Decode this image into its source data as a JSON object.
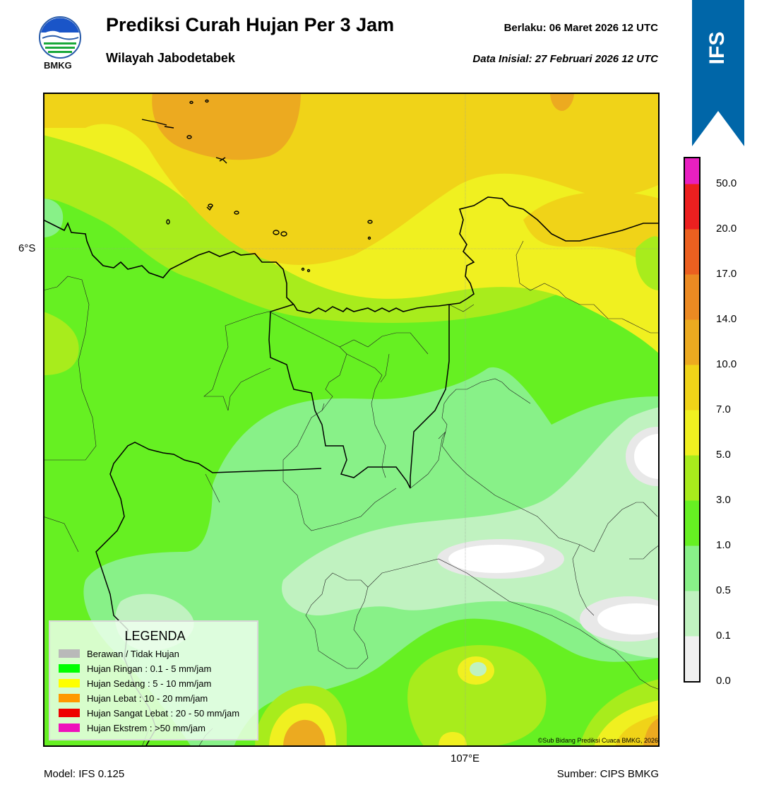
{
  "header": {
    "title": "Prediksi Curah Hujan Per 3 Jam",
    "subtitle": "Wilayah Jabodetabek",
    "valid": "Berlaku:  06 Maret 2026 12 UTC",
    "initial": "Data Inisial:  27 Februari 2026 12 UTC",
    "logo_text": "BMKG",
    "badge": "IFS"
  },
  "map": {
    "lat_label": "6°S",
    "lon_label": "107°E",
    "credit": "©Sub Bidang Prediksi Cuaca BMKG, 2026"
  },
  "legend": {
    "title": "LEGENDA",
    "items": [
      {
        "label": "Berawan / Tidak Hujan",
        "color": "#b9b9b9"
      },
      {
        "label": "Hujan Ringan : 0.1 - 5 mm/jam",
        "color": "#00ff00"
      },
      {
        "label": "Hujan Sedang : 5 - 10 mm/jam",
        "color": "#ffff00"
      },
      {
        "label": "Hujan Lebat : 10 - 20 mm/jam",
        "color": "#ff9900"
      },
      {
        "label": "Hujan Sangat Lebat : 20 - 50 mm/jam",
        "color": "#ee0000"
      },
      {
        "label": "Hujan Ekstrem : >50 mm/jam",
        "color": "#ee11bb"
      }
    ]
  },
  "colorbar": {
    "ticks": [
      "0.0",
      "0.1",
      "0.5",
      "1.0",
      "3.0",
      "5.0",
      "7.0",
      "10.0",
      "14.0",
      "17.0",
      "20.0",
      "50.0"
    ],
    "colors": [
      "#f0f0f0",
      "#c0f2c0",
      "#88f188",
      "#66f022",
      "#a8ec1c",
      "#f0f020",
      "#f0d318",
      "#ecaa20",
      "#ec8a22",
      "#ec6020",
      "#ec2020",
      "#e820c0"
    ]
  },
  "footer": {
    "model": "Model: IFS 0.125",
    "source": "Sumber: CIPS BMKG"
  },
  "colors": {
    "ribbon": "#0066a8",
    "yellow": "#f0f020",
    "gold": "#f0d318",
    "orange": "#ecaa20",
    "lime": "#a8ec1c",
    "green": "#66f022",
    "light_green": "#88f188",
    "pale_green": "#c0f2c0",
    "grey": "#e8e8e8",
    "white": "#ffffff"
  }
}
